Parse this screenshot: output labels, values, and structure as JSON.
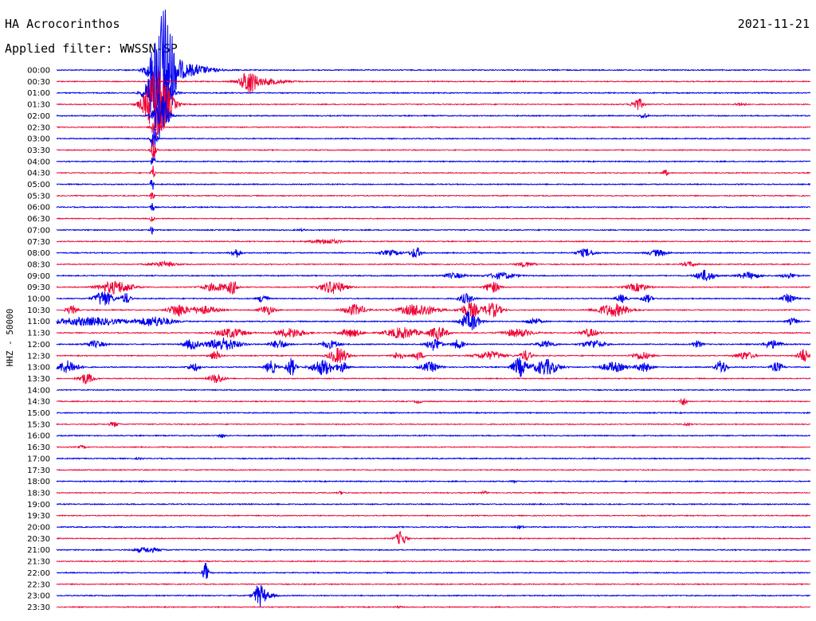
{
  "chart_data": {
    "type": "line",
    "title": "HA Acrocorinthos",
    "subtitle": "Applied filter: WWSSN-SP",
    "date": "2021-11-21",
    "ylabel": "HHZ - 50000",
    "colors": {
      "odd": "#0000ee",
      "even": "#ee0033"
    },
    "rows": [
      "00:00",
      "00:30",
      "01:00",
      "01:30",
      "02:00",
      "02:30",
      "03:00",
      "03:30",
      "04:00",
      "04:30",
      "05:00",
      "05:30",
      "06:00",
      "06:30",
      "07:00",
      "07:30",
      "08:00",
      "08:30",
      "09:00",
      "09:30",
      "10:00",
      "10:30",
      "11:00",
      "11:30",
      "12:00",
      "12:30",
      "13:00",
      "13:30",
      "14:00",
      "14:30",
      "15:00",
      "15:30",
      "16:00",
      "16:30",
      "17:00",
      "17:30",
      "18:00",
      "18:30",
      "19:00",
      "19:30",
      "20:00",
      "20:30",
      "21:00",
      "21:30",
      "22:00",
      "22:30",
      "23:00",
      "23:30"
    ]
  }
}
